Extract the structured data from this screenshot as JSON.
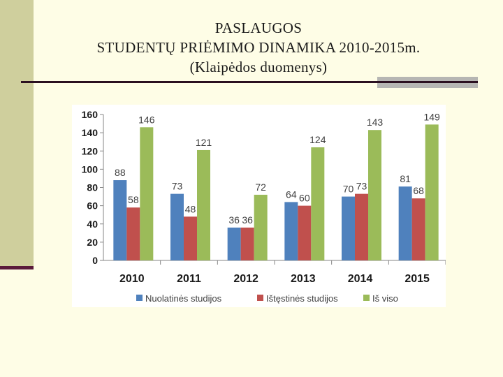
{
  "slide": {
    "title_line1": "PASLAUGOS",
    "title_line2": "STUDENTŲ PRIĖMIMO DINAMIKA 2010-2015m.",
    "title_line3": "(Klaipėdos duomenys)"
  },
  "chart_data": {
    "type": "bar",
    "categories": [
      "2010",
      "2011",
      "2012",
      "2013",
      "2014",
      "2015"
    ],
    "series": [
      {
        "name": "Nuolatinės studijos",
        "values": [
          88,
          73,
          36,
          64,
          70,
          81
        ],
        "color": "#4f81bd"
      },
      {
        "name": "Ištęstinės studijos",
        "values": [
          58,
          48,
          36,
          60,
          73,
          68
        ],
        "color": "#c0504d"
      },
      {
        "name": "Iš viso",
        "values": [
          146,
          121,
          72,
          124,
          143,
          149
        ],
        "color": "#9bbb59"
      }
    ],
    "ylim": [
      0,
      160
    ],
    "yticks": [
      0,
      20,
      40,
      60,
      80,
      100,
      120,
      140,
      160
    ],
    "legend_position": "bottom",
    "grid": false
  }
}
